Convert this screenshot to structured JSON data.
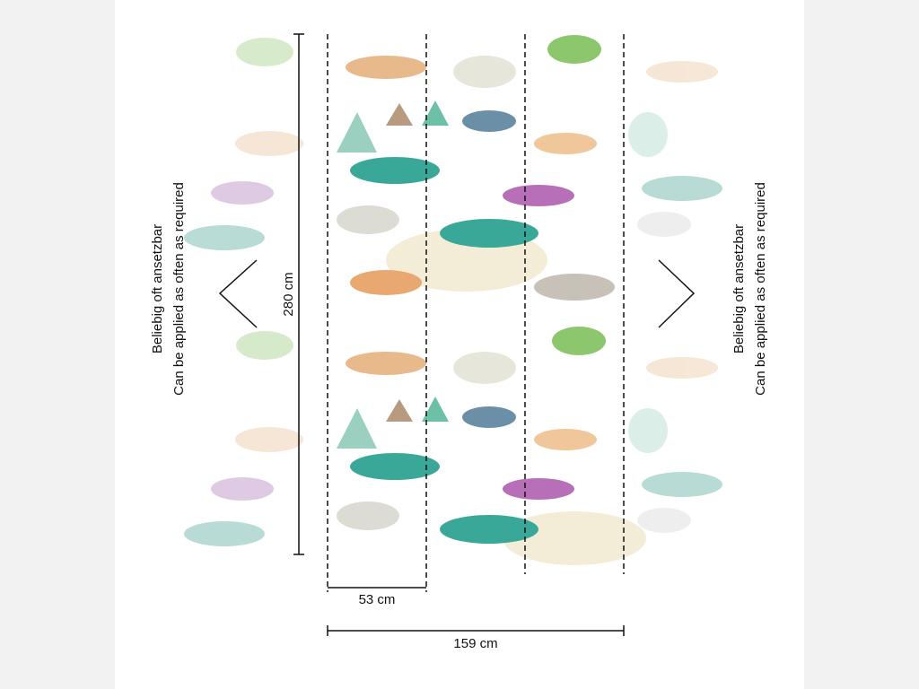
{
  "left_note": {
    "lines": [
      "Beliebig oft ansetzbar",
      "Can be applied as often as required"
    ]
  },
  "right_note": {
    "lines": [
      "Beliebig oft ansetzbar",
      "Can be applied as often as required"
    ]
  },
  "dimensions": {
    "height": "280 cm",
    "panel_width": "53 cm",
    "total_width": "159 cm"
  }
}
